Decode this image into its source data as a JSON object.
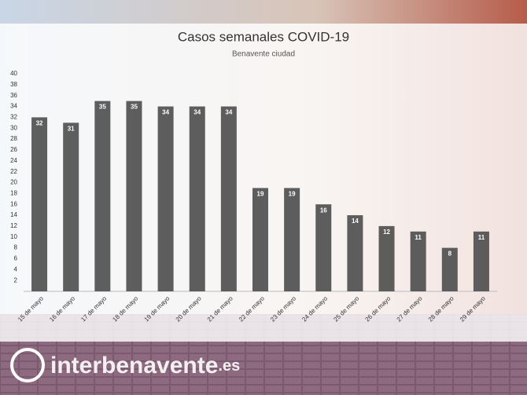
{
  "chart_data": {
    "type": "bar",
    "title": "Casos semanales COVID-19",
    "subtitle": "Benavente ciudad",
    "categories": [
      "15 de mayo",
      "16 de mayo",
      "17 de mayo",
      "18 de mayo",
      "19 de mayo",
      "20 de mayo",
      "21 de mayo",
      "22 de mayo",
      "23 de mayo",
      "24 de mayo",
      "25 de mayo",
      "26 de mayo",
      "27 de mayo",
      "28 de mayo",
      "29 de mayo"
    ],
    "values": [
      32,
      31,
      35,
      35,
      34,
      34,
      34,
      19,
      19,
      16,
      14,
      12,
      11,
      8,
      11
    ],
    "color": "#4d4d4d",
    "ylim": [
      0,
      40
    ],
    "yticks": [
      2,
      4,
      6,
      8,
      10,
      12,
      14,
      16,
      18,
      20,
      22,
      24,
      26,
      28,
      30,
      32,
      34,
      36,
      38,
      40
    ],
    "grid": false
  },
  "brand": {
    "name": "interbenavente",
    "tld": ".es"
  }
}
